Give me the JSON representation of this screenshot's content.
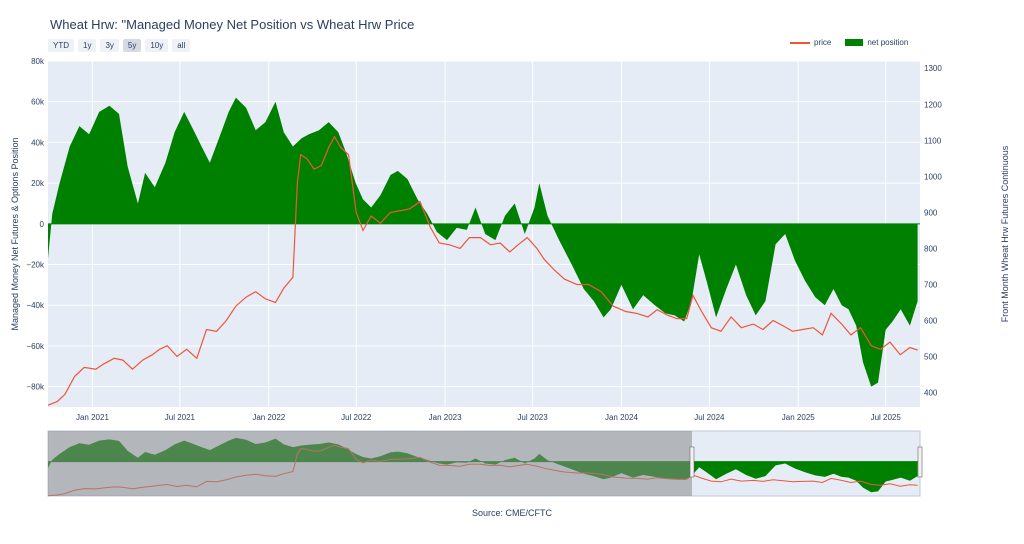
{
  "title": "Wheat Hrw: \"Managed Money Net Position vs Wheat Hrw Price",
  "range_selector": [
    "YTD",
    "1y",
    "3y",
    "5y",
    "10y",
    "all"
  ],
  "range_selector_active": "5y",
  "legend": {
    "price_label": "price",
    "net_label": "net position"
  },
  "source": "Source: CME/CFTC",
  "colors": {
    "price": "#ef553b",
    "net": "#008000",
    "plot_bg": "#e5ecf6",
    "slider_mask": "#8a8a8a"
  },
  "chart_data": {
    "type": "line",
    "title": "Wheat Hrw: \"Managed Money Net Position vs Wheat Hrw Price",
    "x_axis": {
      "range": [
        "2020-10-01",
        "2025-09-10"
      ],
      "ticks": [
        "2021-01-01",
        "2021-07-01",
        "2022-01-01",
        "2022-07-01",
        "2023-01-01",
        "2023-07-01",
        "2024-01-01",
        "2024-07-01",
        "2025-01-01",
        "2025-07-01"
      ],
      "tick_labels": [
        "Jan 2021",
        "Jul 2021",
        "Jan 2022",
        "Jul 2022",
        "Jan 2023",
        "Jul 2023",
        "Jan 2024",
        "Jul 2024",
        "Jan 2025",
        "Jul 2025"
      ]
    },
    "y_left": {
      "label": "Managed Money Net Futures & Options Position",
      "range": [
        -90000,
        80000
      ],
      "ticks": [
        -80000,
        -60000,
        -40000,
        -20000,
        0,
        20000,
        40000,
        60000,
        80000
      ],
      "tick_labels": [
        "−80k",
        "−60k",
        "−40k",
        "−20k",
        "0",
        "20k",
        "40k",
        "60k",
        "80k"
      ]
    },
    "y_right": {
      "label": "Front Month Wheat Hrw Futures Continuous",
      "range": [
        360,
        1320
      ],
      "ticks": [
        400,
        500,
        600,
        700,
        800,
        900,
        1000,
        1100,
        1200,
        1300
      ],
      "tick_labels": [
        "400",
        "500",
        "600",
        "700",
        "800",
        "900",
        "1000",
        "1100",
        "1200",
        "1300"
      ]
    },
    "legend_position": "top-right",
    "series": [
      {
        "name": "price",
        "type": "line",
        "axis": "right",
        "x": [
          "2020-10-01",
          "2020-10-20",
          "2020-11-05",
          "2020-11-25",
          "2020-12-15",
          "2021-01-08",
          "2021-01-25",
          "2021-02-15",
          "2021-03-05",
          "2021-03-25",
          "2021-04-15",
          "2021-05-05",
          "2021-05-20",
          "2021-06-05",
          "2021-06-25",
          "2021-07-15",
          "2021-08-05",
          "2021-08-25",
          "2021-09-15",
          "2021-10-05",
          "2021-10-25",
          "2021-11-15",
          "2021-12-05",
          "2021-12-25",
          "2022-01-15",
          "2022-02-01",
          "2022-02-20",
          "2022-03-01",
          "2022-03-08",
          "2022-03-20",
          "2022-04-05",
          "2022-04-20",
          "2022-05-05",
          "2022-05-17",
          "2022-05-30",
          "2022-06-15",
          "2022-07-01",
          "2022-07-15",
          "2022-08-01",
          "2022-08-20",
          "2022-09-10",
          "2022-10-01",
          "2022-10-20",
          "2022-11-10",
          "2022-12-01",
          "2022-12-20",
          "2023-01-10",
          "2023-02-01",
          "2023-02-20",
          "2023-03-15",
          "2023-04-05",
          "2023-04-25",
          "2023-05-15",
          "2023-06-01",
          "2023-06-20",
          "2023-07-10",
          "2023-07-25",
          "2023-08-15",
          "2023-09-05",
          "2023-10-01",
          "2023-10-25",
          "2023-11-20",
          "2023-12-15",
          "2024-01-10",
          "2024-02-01",
          "2024-02-25",
          "2024-03-15",
          "2024-04-05",
          "2024-04-25",
          "2024-05-15",
          "2024-05-28",
          "2024-06-15",
          "2024-07-05",
          "2024-07-25",
          "2024-08-15",
          "2024-09-05",
          "2024-09-30",
          "2024-10-20",
          "2024-11-10",
          "2024-12-01",
          "2024-12-20",
          "2025-01-10",
          "2025-02-01",
          "2025-02-20",
          "2025-03-10",
          "2025-04-01",
          "2025-04-20",
          "2025-05-10",
          "2025-06-01",
          "2025-06-20",
          "2025-07-10",
          "2025-07-31",
          "2025-08-20",
          "2025-09-05"
        ],
        "y": [
          365,
          375,
          395,
          445,
          470,
          465,
          480,
          495,
          490,
          465,
          490,
          505,
          520,
          530,
          500,
          520,
          495,
          575,
          570,
          600,
          640,
          665,
          680,
          660,
          650,
          690,
          720,
          980,
          1060,
          1050,
          1020,
          1030,
          1080,
          1110,
          1080,
          1060,
          900,
          850,
          890,
          870,
          900,
          905,
          910,
          930,
          860,
          815,
          810,
          800,
          830,
          830,
          810,
          815,
          790,
          810,
          830,
          800,
          770,
          740,
          715,
          700,
          700,
          680,
          640,
          625,
          620,
          610,
          630,
          615,
          605,
          605,
          670,
          625,
          580,
          570,
          610,
          580,
          590,
          575,
          600,
          585,
          570,
          575,
          580,
          560,
          620,
          590,
          560,
          580,
          530,
          520,
          540,
          505,
          525,
          518
        ]
      },
      {
        "name": "net position",
        "type": "area",
        "axis": "left",
        "x": [
          "2020-10-01",
          "2020-10-10",
          "2020-10-25",
          "2020-11-15",
          "2020-12-05",
          "2020-12-25",
          "2021-01-15",
          "2021-02-05",
          "2021-02-25",
          "2021-03-15",
          "2021-04-05",
          "2021-04-20",
          "2021-05-10",
          "2021-06-01",
          "2021-06-20",
          "2021-07-10",
          "2021-07-25",
          "2021-08-15",
          "2021-09-01",
          "2021-09-20",
          "2021-10-10",
          "2021-10-25",
          "2021-11-15",
          "2021-12-05",
          "2021-12-25",
          "2022-01-15",
          "2022-02-01",
          "2022-02-20",
          "2022-03-10",
          "2022-03-25",
          "2022-04-15",
          "2022-05-05",
          "2022-05-25",
          "2022-06-10",
          "2022-06-30",
          "2022-07-15",
          "2022-08-01",
          "2022-08-20",
          "2022-09-10",
          "2022-09-25",
          "2022-10-15",
          "2022-11-05",
          "2022-11-25",
          "2022-12-15",
          "2023-01-05",
          "2023-01-25",
          "2023-02-15",
          "2023-03-05",
          "2023-03-25",
          "2023-04-15",
          "2023-05-05",
          "2023-05-25",
          "2023-06-15",
          "2023-07-05",
          "2023-07-15",
          "2023-08-01",
          "2023-08-25",
          "2023-09-20",
          "2023-10-15",
          "2023-11-05",
          "2023-11-25",
          "2023-12-10",
          "2024-01-01",
          "2024-01-25",
          "2024-02-15",
          "2024-03-10",
          "2024-04-01",
          "2024-04-20",
          "2024-05-10",
          "2024-05-25",
          "2024-06-10",
          "2024-06-25",
          "2024-07-15",
          "2024-08-05",
          "2024-08-25",
          "2024-09-15",
          "2024-10-05",
          "2024-10-25",
          "2024-11-15",
          "2024-12-05",
          "2024-12-25",
          "2025-01-15",
          "2025-02-05",
          "2025-02-25",
          "2025-03-15",
          "2025-04-01",
          "2025-04-15",
          "2025-05-01",
          "2025-05-15",
          "2025-06-01",
          "2025-06-15",
          "2025-07-01",
          "2025-07-15",
          "2025-08-01",
          "2025-08-20",
          "2025-09-05"
        ],
        "y": [
          -17000,
          5000,
          20000,
          38000,
          48000,
          44000,
          55000,
          58000,
          54000,
          28000,
          10000,
          25000,
          18000,
          30000,
          45000,
          55000,
          48000,
          38000,
          30000,
          42000,
          55000,
          62000,
          57000,
          46000,
          50000,
          60000,
          45000,
          38000,
          42000,
          44000,
          46000,
          50000,
          45000,
          35000,
          20000,
          12000,
          8000,
          14000,
          24000,
          26000,
          22000,
          12000,
          5000,
          -4000,
          -8000,
          -2000,
          -3000,
          8000,
          -5000,
          -8000,
          4000,
          10000,
          -5000,
          8000,
          20000,
          4000,
          -8000,
          -20000,
          -32000,
          -38000,
          -46000,
          -42000,
          -30000,
          -42000,
          -35000,
          -40000,
          -44000,
          -45000,
          -48000,
          -38000,
          -15000,
          -28000,
          -46000,
          -32000,
          -20000,
          -35000,
          -45000,
          -38000,
          -10000,
          -5000,
          -18000,
          -28000,
          -36000,
          -40000,
          -32000,
          -40000,
          -42000,
          -50000,
          -68000,
          -80000,
          -78000,
          -52000,
          -48000,
          -42000,
          -50000,
          -38000
        ]
      }
    ]
  }
}
